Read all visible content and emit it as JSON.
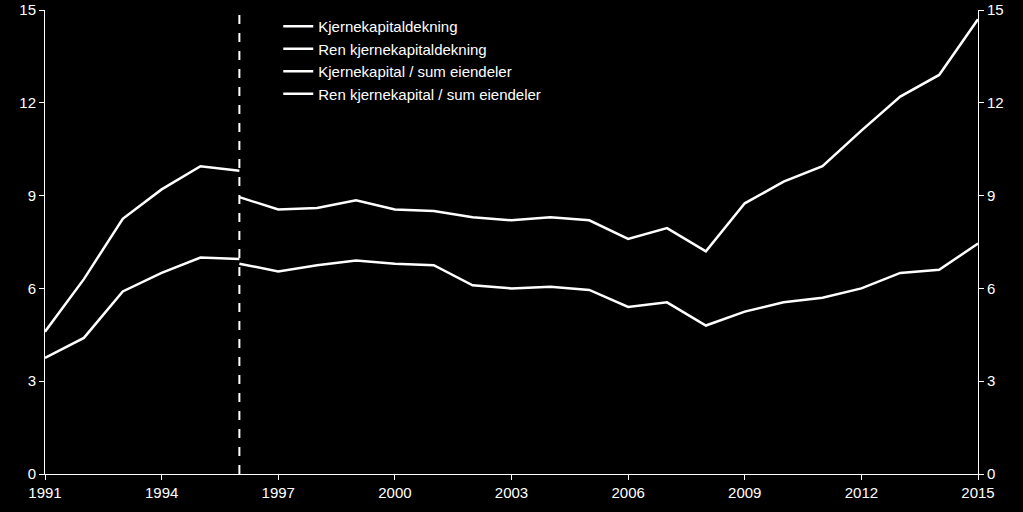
{
  "chart_data": {
    "type": "line",
    "x": [
      1991,
      1992,
      1993,
      1994,
      1995,
      1996,
      1997,
      1998,
      1999,
      2000,
      2001,
      2002,
      2003,
      2004,
      2005,
      2006,
      2007,
      2008,
      2009,
      2010,
      2011,
      2012,
      2013,
      2014,
      2015
    ],
    "series": [
      {
        "name": "Kjernekapitaldekning",
        "color": "#ffffff",
        "line_style": "solid",
        "values": [
          4.6,
          6.3,
          8.25,
          9.2,
          9.95,
          9.8,
          null,
          null,
          null,
          null,
          null,
          null,
          null,
          null,
          null,
          null,
          null,
          null,
          null,
          null,
          null,
          null,
          null,
          null,
          null
        ]
      },
      {
        "name": "Ren kjernekapitaldekning",
        "color": "#ffffff",
        "line_style": "solid",
        "values": [
          null,
          null,
          null,
          null,
          null,
          8.95,
          8.55,
          8.6,
          8.85,
          8.55,
          8.5,
          8.3,
          8.2,
          8.3,
          8.2,
          7.6,
          7.95,
          7.2,
          8.75,
          9.45,
          9.95,
          11.1,
          12.2,
          12.9,
          14.7
        ]
      },
      {
        "name": "Kjernekapital / sum eiendeler",
        "color": "#ffffff",
        "line_style": "solid",
        "values": [
          3.75,
          4.4,
          5.9,
          6.5,
          7.0,
          6.95,
          null,
          null,
          null,
          null,
          null,
          null,
          null,
          null,
          null,
          null,
          null,
          null,
          null,
          null,
          null,
          null,
          null,
          null,
          null
        ]
      },
      {
        "name": "Ren kjernekapital / sum eiendeler",
        "color": "#ffffff",
        "line_style": "solid",
        "values": [
          null,
          null,
          null,
          null,
          null,
          6.8,
          6.55,
          6.75,
          6.9,
          6.8,
          6.75,
          6.1,
          6.0,
          6.05,
          5.95,
          5.4,
          5.55,
          4.8,
          5.25,
          5.55,
          5.7,
          6.0,
          6.5,
          6.6,
          7.45
        ]
      }
    ],
    "break_year": 1996,
    "xlim": [
      1991,
      2015
    ],
    "xticks": [
      1991,
      1994,
      1997,
      2000,
      2003,
      2006,
      2009,
      2012,
      2015
    ],
    "ylim": [
      0,
      15
    ],
    "yticks": [
      0,
      3,
      6,
      9,
      12,
      15
    ],
    "y2lim": [
      0,
      15
    ],
    "y2ticks": [
      0,
      3,
      6,
      9,
      12,
      15
    ],
    "grid": false,
    "legend": "top left"
  }
}
